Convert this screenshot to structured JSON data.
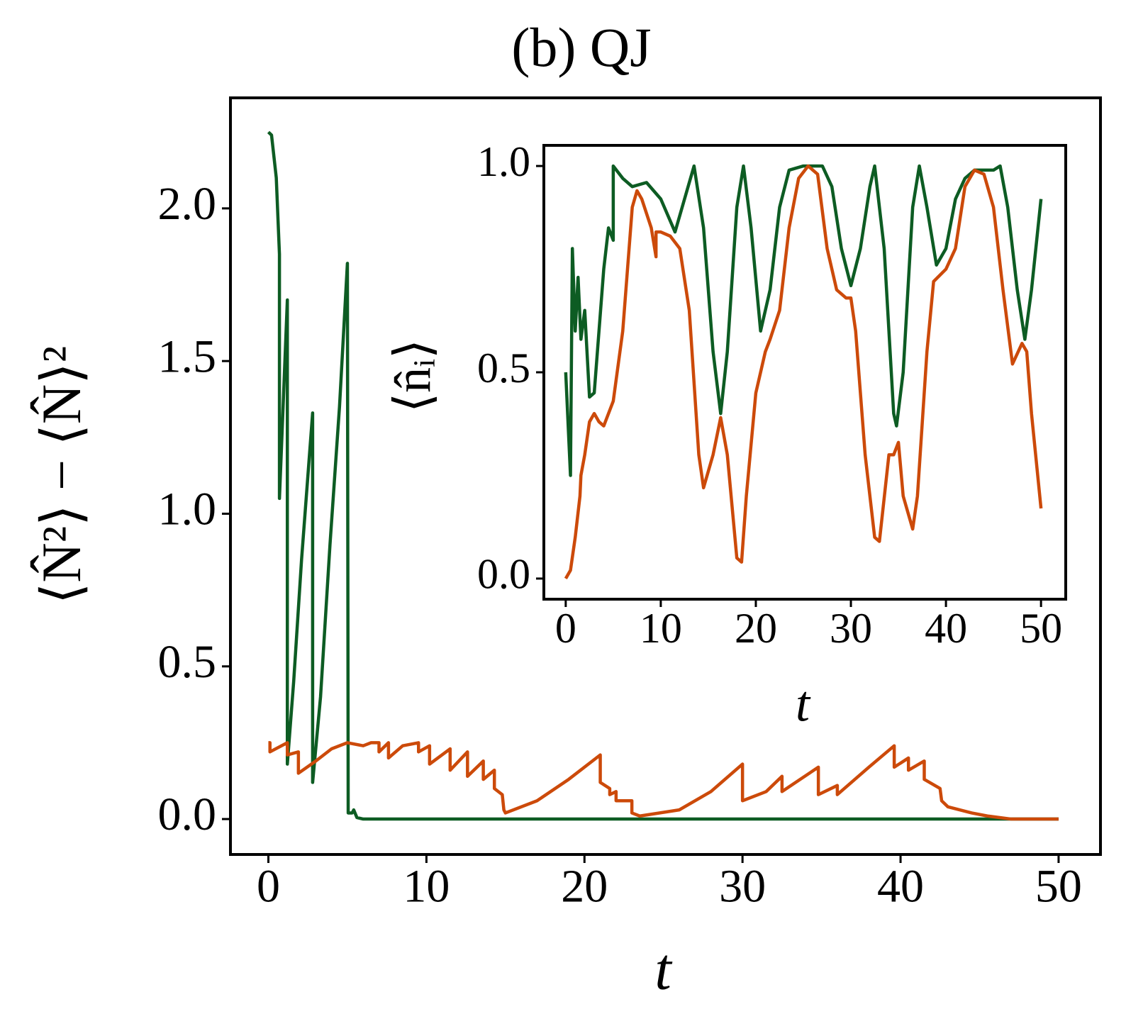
{
  "chart_data": [
    {
      "type": "line",
      "title": "(b) QJ",
      "xlabel": "t",
      "ylabel": "⟨N̂²⟩ − ⟨N̂⟩²",
      "xlim": [
        -2.4,
        52.65
      ],
      "ylim": [
        -0.116,
        2.362
      ],
      "xticks": [
        0,
        10,
        20,
        30,
        40,
        50
      ],
      "yticks": [
        {
          "value": 0,
          "label": "0.0"
        },
        {
          "value": 0.5,
          "label": "0.5"
        },
        {
          "value": 1,
          "label": "1.0"
        },
        1.5,
        {
          "value": 2,
          "label": "2.0"
        }
      ],
      "series": [
        {
          "color": "#0d5c23",
          "x": [
            0,
            0.2,
            0.5,
            0.7,
            0.7,
            1.2,
            1.2,
            1.6,
            2.1,
            2.8,
            2.8,
            3.3,
            3.9,
            4.5,
            5.0,
            5.05,
            5.3,
            5.4,
            5.6,
            6,
            10,
            20,
            30,
            40,
            50
          ],
          "values": [
            2.25,
            2.24,
            2.1,
            1.85,
            1.05,
            1.7,
            0.18,
            0.45,
            0.85,
            1.33,
            0.12,
            0.4,
            0.9,
            1.35,
            1.82,
            0.02,
            0.02,
            0.03,
            0.005,
            0,
            0,
            0,
            0,
            0,
            0
          ]
        },
        {
          "color": "#cc4a0a",
          "x": [
            0,
            0.1,
            0.1,
            1.2,
            1.2,
            1.9,
            1.9,
            3,
            4,
            5,
            6,
            6.5,
            7,
            7,
            7.6,
            7.6,
            8.5,
            9.5,
            9.5,
            10.2,
            10.2,
            11.5,
            11.5,
            12.6,
            12.6,
            13.6,
            13.6,
            14.3,
            14.3,
            14.8,
            14.9,
            15,
            17,
            19,
            21,
            21,
            21.6,
            21.6,
            22,
            22,
            23,
            23,
            23.5,
            26,
            28,
            30,
            30,
            31.5,
            32.5,
            32.5,
            34.8,
            34.8,
            36,
            36,
            38,
            39.6,
            39.6,
            40.5,
            40.5,
            41.5,
            41.5,
            42.5,
            42.6,
            43,
            44.5,
            45.5,
            47,
            50
          ],
          "values": [
            0.25,
            0.25,
            0.22,
            0.25,
            0.21,
            0.22,
            0.15,
            0.19,
            0.23,
            0.25,
            0.24,
            0.25,
            0.25,
            0.22,
            0.25,
            0.2,
            0.24,
            0.25,
            0.22,
            0.24,
            0.18,
            0.23,
            0.16,
            0.22,
            0.14,
            0.19,
            0.13,
            0.16,
            0.1,
            0.08,
            0.03,
            0.02,
            0.06,
            0.13,
            0.21,
            0.12,
            0.1,
            0.08,
            0.09,
            0.06,
            0.06,
            0.02,
            0.01,
            0.03,
            0.09,
            0.18,
            0.06,
            0.09,
            0.14,
            0.09,
            0.17,
            0.08,
            0.11,
            0.08,
            0.17,
            0.24,
            0.17,
            0.2,
            0.16,
            0.19,
            0.13,
            0.1,
            0.06,
            0.04,
            0.02,
            0.01,
            0,
            0
          ]
        }
      ]
    },
    {
      "type": "line",
      "xlabel": "t",
      "ylabel": "⟨n̂ᵢ⟩",
      "xlim": [
        -2.3,
        52.6
      ],
      "ylim": [
        -0.05,
        1.05
      ],
      "xticks": [
        0,
        10,
        20,
        30,
        40,
        50
      ],
      "yticks": [
        {
          "value": 0,
          "label": "0.0"
        },
        {
          "value": 0.5,
          "label": "0.5"
        },
        {
          "value": 1,
          "label": "1.0"
        }
      ],
      "series": [
        {
          "color": "#0d5c23",
          "x": [
            0,
            0.5,
            0.7,
            1,
            1.3,
            1.6,
            2,
            2.5,
            3,
            3.5,
            4,
            4.5,
            5,
            5,
            6,
            7,
            8.5,
            10,
            11.5,
            12.5,
            13.5,
            14.5,
            15.5,
            16.3,
            17,
            18,
            18.7,
            19.5,
            20.5,
            21.5,
            22.5,
            23.5,
            25,
            27,
            28,
            29,
            30,
            31,
            32,
            32.5,
            33.5,
            34.5,
            34.8,
            35.5,
            36.5,
            37.2,
            38,
            39,
            40,
            41,
            42,
            43,
            44,
            45,
            45.7,
            46.5,
            47.5,
            48.3,
            49,
            50
          ],
          "values": [
            0.5,
            0.25,
            0.8,
            0.6,
            0.73,
            0.58,
            0.65,
            0.44,
            0.45,
            0.6,
            0.75,
            0.85,
            0.82,
            1.0,
            0.97,
            0.95,
            0.96,
            0.92,
            0.84,
            0.92,
            1.0,
            0.85,
            0.55,
            0.4,
            0.55,
            0.9,
            1.0,
            0.85,
            0.6,
            0.7,
            0.9,
            0.99,
            1.0,
            1.0,
            0.95,
            0.8,
            0.71,
            0.8,
            0.95,
            1.0,
            0.8,
            0.4,
            0.37,
            0.5,
            0.9,
            1.0,
            0.9,
            0.76,
            0.8,
            0.92,
            0.97,
            0.99,
            0.99,
            0.99,
            1.0,
            0.9,
            0.7,
            0.58,
            0.7,
            0.92
          ]
        },
        {
          "color": "#cc4a0a",
          "x": [
            0,
            0.5,
            1,
            1.5,
            1.6,
            2,
            2.5,
            3,
            3.5,
            4,
            5,
            6,
            7,
            7.5,
            8,
            9,
            9.5,
            9.5,
            10,
            11,
            12,
            13,
            14,
            14.5,
            15.5,
            16.3,
            17,
            18,
            18.5,
            19,
            20,
            21,
            21.5,
            22.5,
            23.5,
            24.5,
            25.5,
            26.5,
            27.5,
            28.5,
            29.5,
            30,
            30.5,
            31.5,
            32.5,
            33,
            34,
            34.5,
            35,
            35.5,
            36.5,
            37,
            38,
            38.7,
            40,
            41,
            42,
            43,
            44,
            45,
            46,
            47,
            48,
            48.5,
            49,
            50
          ],
          "values": [
            0,
            0.02,
            0.1,
            0.2,
            0.25,
            0.3,
            0.38,
            0.4,
            0.38,
            0.37,
            0.43,
            0.6,
            0.9,
            0.94,
            0.92,
            0.85,
            0.78,
            0.84,
            0.84,
            0.83,
            0.8,
            0.65,
            0.3,
            0.22,
            0.3,
            0.39,
            0.3,
            0.05,
            0.04,
            0.2,
            0.45,
            0.55,
            0.58,
            0.65,
            0.85,
            0.97,
            1.0,
            0.98,
            0.8,
            0.7,
            0.68,
            0.68,
            0.6,
            0.3,
            0.1,
            0.09,
            0.3,
            0.3,
            0.33,
            0.2,
            0.12,
            0.2,
            0.55,
            0.72,
            0.75,
            0.8,
            0.95,
            0.99,
            0.98,
            0.9,
            0.7,
            0.52,
            0.57,
            0.55,
            0.4,
            0.17
          ]
        }
      ]
    }
  ]
}
